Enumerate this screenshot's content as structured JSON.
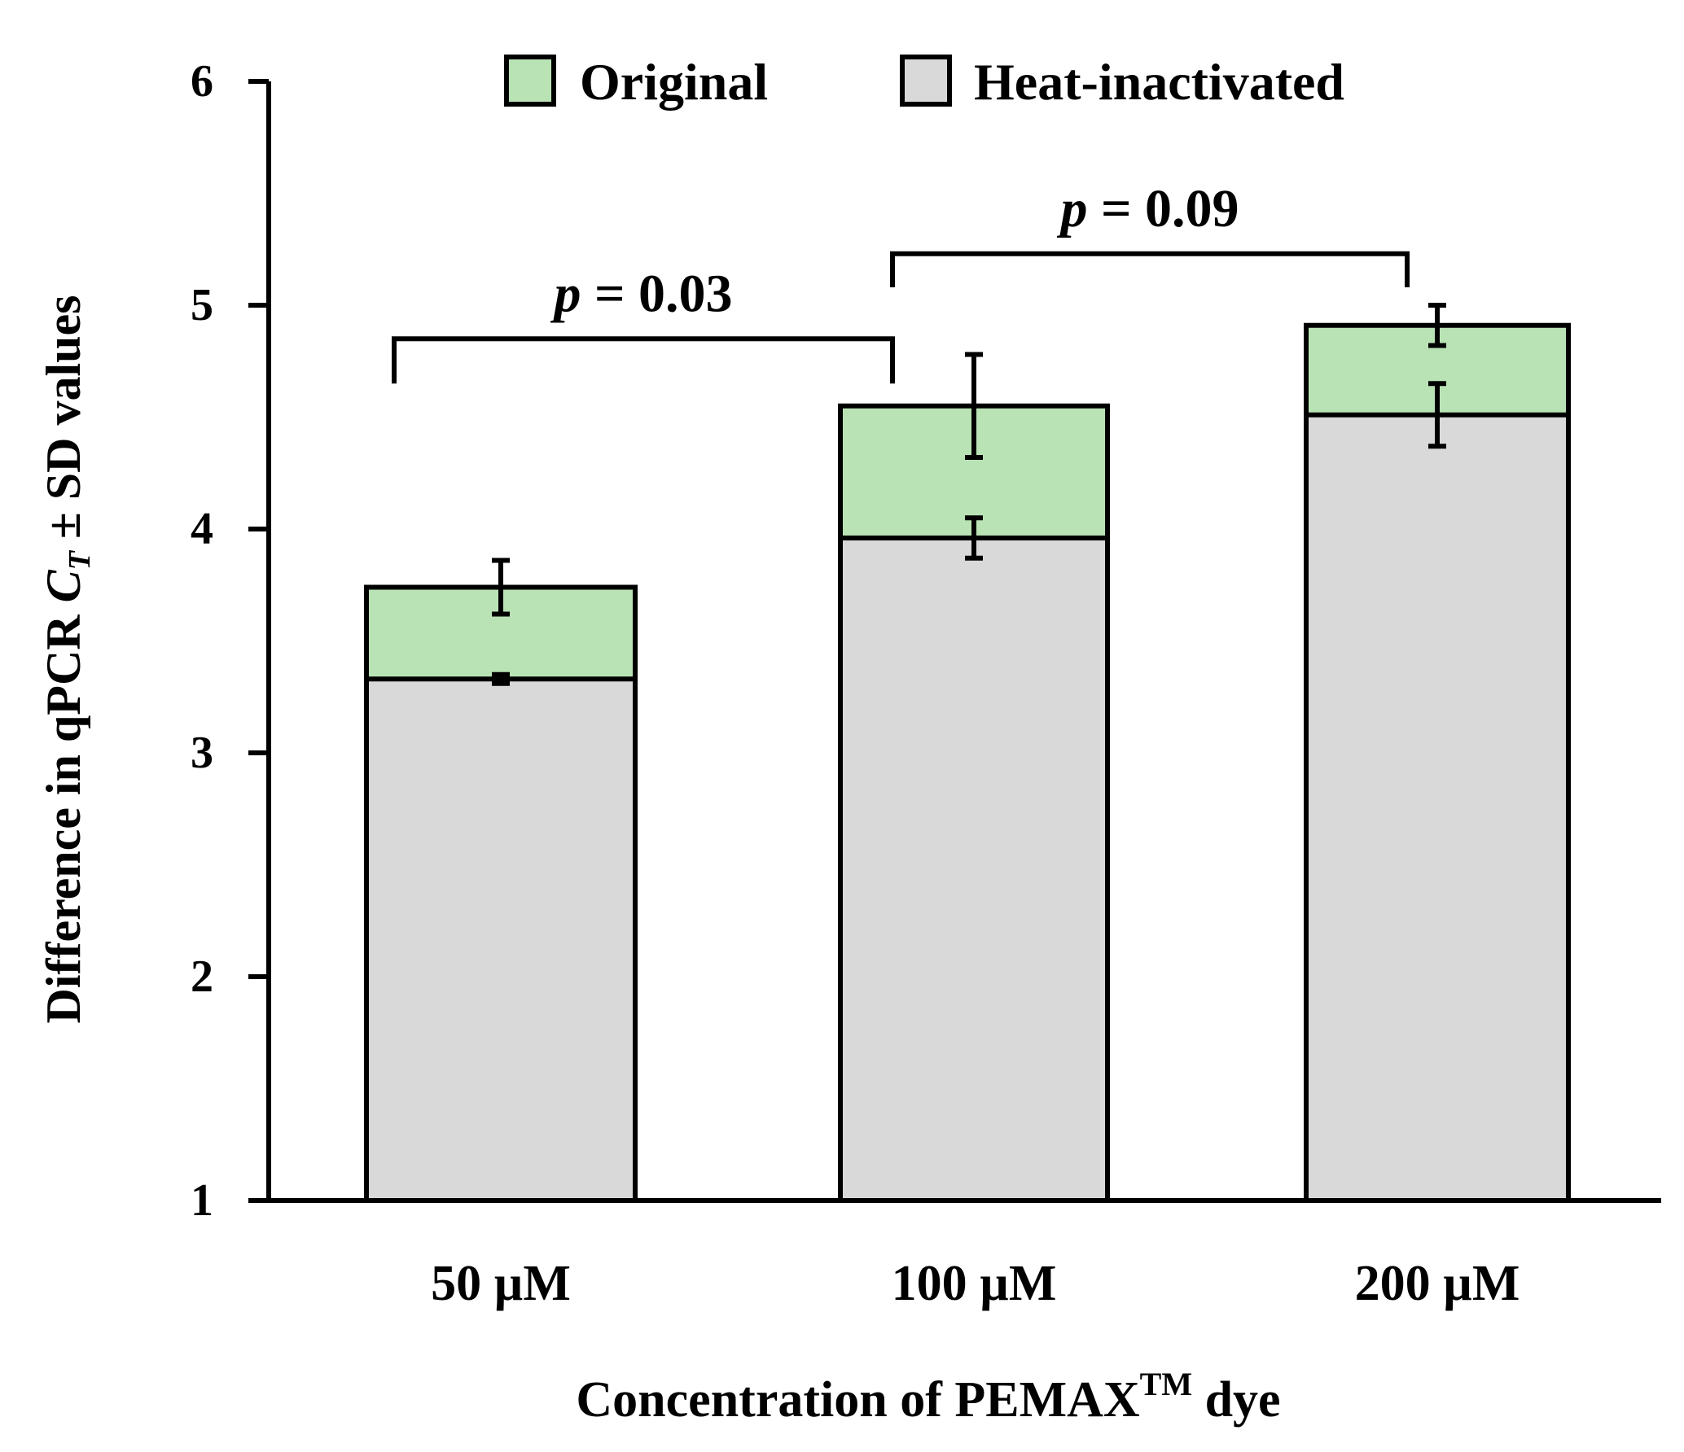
{
  "chart_data": {
    "type": "bar",
    "stacked": false,
    "overlay": true,
    "categories": [
      "50 µM",
      "100 µM",
      "200 µM"
    ],
    "series": [
      {
        "name": "Original",
        "values": [
          3.74,
          4.55,
          4.91
        ],
        "errors": [
          0.12,
          0.23,
          0.09
        ],
        "color": "#b9e2b5"
      },
      {
        "name": "Heat-inactivated",
        "values": [
          3.33,
          3.96,
          4.51
        ],
        "errors": [
          0.02,
          0.09,
          0.14
        ],
        "color": "#d9d9d9"
      }
    ],
    "ylim": [
      1,
      6
    ],
    "yticks": [
      "1",
      "2",
      "3",
      "4",
      "5",
      "6"
    ],
    "ylabel_parts": {
      "pre": "Difference in qPCR ",
      "ct": "C",
      "ct_sub": "T",
      "post": " ± SD values"
    },
    "xlabel_parts": {
      "pre": "Concentration  of PEMAX",
      "sup": "TM",
      "post": " dye"
    },
    "legend_position": "top",
    "annotations": [
      {
        "from": 0,
        "to": 1,
        "p_symbol": "p",
        "text": " = 0.03",
        "y_data": 4.85,
        "foot_data": 4.65
      },
      {
        "from": 1,
        "to": 2,
        "p_symbol": "p",
        "text": " = 0.09",
        "y_data": 5.23,
        "foot_data": 5.08
      }
    ]
  }
}
